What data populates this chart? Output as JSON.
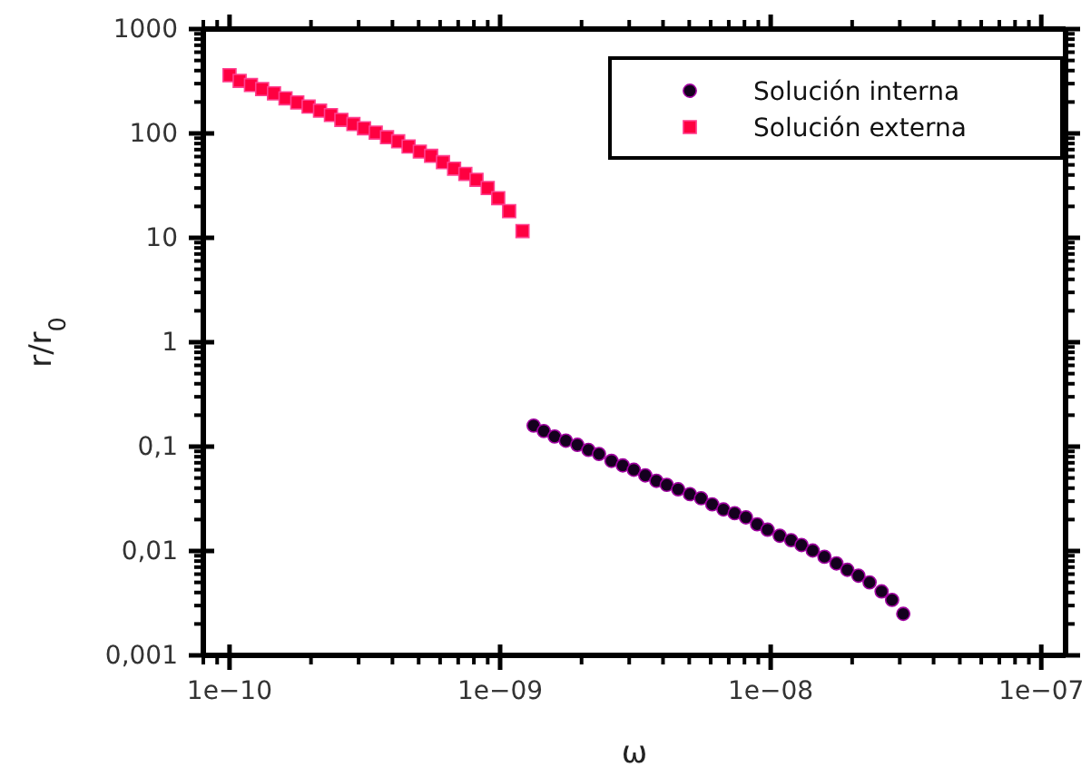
{
  "chart_data": {
    "type": "scatter",
    "xlabel": "ω",
    "ylabel": "r/r$_{0}$",
    "log": "xy",
    "grid": false,
    "legend": "top right",
    "xlim": [
      8e-11,
      1.23e-07
    ],
    "ylim": [
      0.001,
      1000
    ],
    "xticks": [
      {
        "value": 1e-10,
        "label": "1e−10"
      },
      {
        "value": 1e-09,
        "label": "1e−09"
      },
      {
        "value": 1e-08,
        "label": "1e−08"
      },
      {
        "value": 1e-07,
        "label": "1e−07"
      }
    ],
    "yticks": [
      {
        "value": 0.001,
        "label": "0,001"
      },
      {
        "value": 0.01,
        "label": "0,01"
      },
      {
        "value": 0.1,
        "label": "0,1"
      },
      1,
      10,
      100,
      1000
    ],
    "series": [
      {
        "name": "Solución interna",
        "color": "#14001e",
        "marker": "circle",
        "x": [
          1.33e-09,
          1.45e-09,
          1.59e-09,
          1.75e-09,
          1.93e-09,
          2.12e-09,
          2.32e-09,
          2.58e-09,
          2.84e-09,
          3.12e-09,
          3.44e-09,
          3.78e-09,
          4.13e-09,
          4.55e-09,
          5.03e-09,
          5.53e-09,
          6.08e-09,
          6.69e-09,
          7.36e-09,
          8.1e-09,
          8.91e-09,
          9.74e-09,
          1.08e-08,
          1.19e-08,
          1.3e-08,
          1.43e-08,
          1.58e-08,
          1.75e-08,
          1.92e-08,
          2.11e-08,
          2.32e-08,
          2.57e-08,
          2.81e-08,
          3.09e-08
        ],
        "values": [
          0.159,
          0.141,
          0.125,
          0.114,
          0.104,
          0.093,
          0.085,
          0.073,
          0.066,
          0.06,
          0.053,
          0.047,
          0.043,
          0.039,
          0.035,
          0.032,
          0.028,
          0.025,
          0.023,
          0.021,
          0.018,
          0.016,
          0.014,
          0.0127,
          0.0114,
          0.0101,
          0.0088,
          0.0076,
          0.0066,
          0.0058,
          0.005,
          0.0041,
          0.0034,
          0.0025
        ]
      },
      {
        "name": "Solución externa",
        "color": "#ff0040",
        "marker": "square",
        "x": [
          1e-10,
          1.09e-10,
          1.2e-10,
          1.32e-10,
          1.46e-10,
          1.61e-10,
          1.78e-10,
          1.96e-10,
          2.16e-10,
          2.37e-10,
          2.59e-10,
          2.87e-10,
          3.14e-10,
          3.47e-10,
          3.82e-10,
          4.2e-10,
          4.59e-10,
          5.05e-10,
          5.56e-10,
          6.15e-10,
          6.76e-10,
          7.44e-10,
          8.18e-10,
          9e-10,
          9.84e-10,
          1.08e-09,
          1.21e-09
        ],
        "values": [
          361,
          319,
          291,
          266,
          242,
          217,
          198,
          181,
          165,
          150,
          135,
          123,
          112,
          102,
          92,
          84,
          75,
          67,
          61,
          53,
          46,
          41,
          36,
          30,
          24,
          18,
          11.6
        ]
      }
    ]
  }
}
